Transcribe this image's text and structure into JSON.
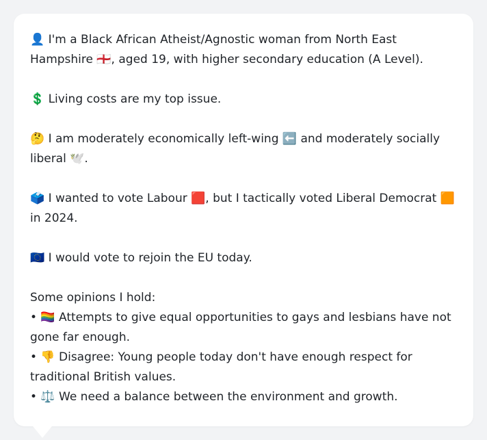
{
  "card": {
    "lines": [
      "👤 I'm a Black African Atheist/Agnostic woman from North East Hampshire 🏴󠁧󠁢󠁥󠁮󠁧󠁿, aged 19, with higher secondary education (A Level).",
      "💲 Living costs are my top issue.",
      "🤔 I am moderately economically left-wing ⬅️ and moderately socially liberal 🕊️.",
      "🗳️ I wanted to vote Labour 🟥, but I tactically voted Liberal Democrat 🟧 in 2024.",
      "🇪🇺 I would vote to rejoin the EU today."
    ],
    "opinions_heading": "Some opinions I hold:",
    "opinions": [
      "• 🏳️‍🌈 Attempts to give equal opportunities to gays and lesbians have not gone far enough.",
      "• 👎 Disagree: Young people today don't have enough respect for traditional British values.",
      "• ⚖️ We need a balance between the environment and growth."
    ]
  },
  "colors": {
    "background": "#f2f3f5",
    "card": "#ffffff",
    "text": "#1f2328"
  }
}
